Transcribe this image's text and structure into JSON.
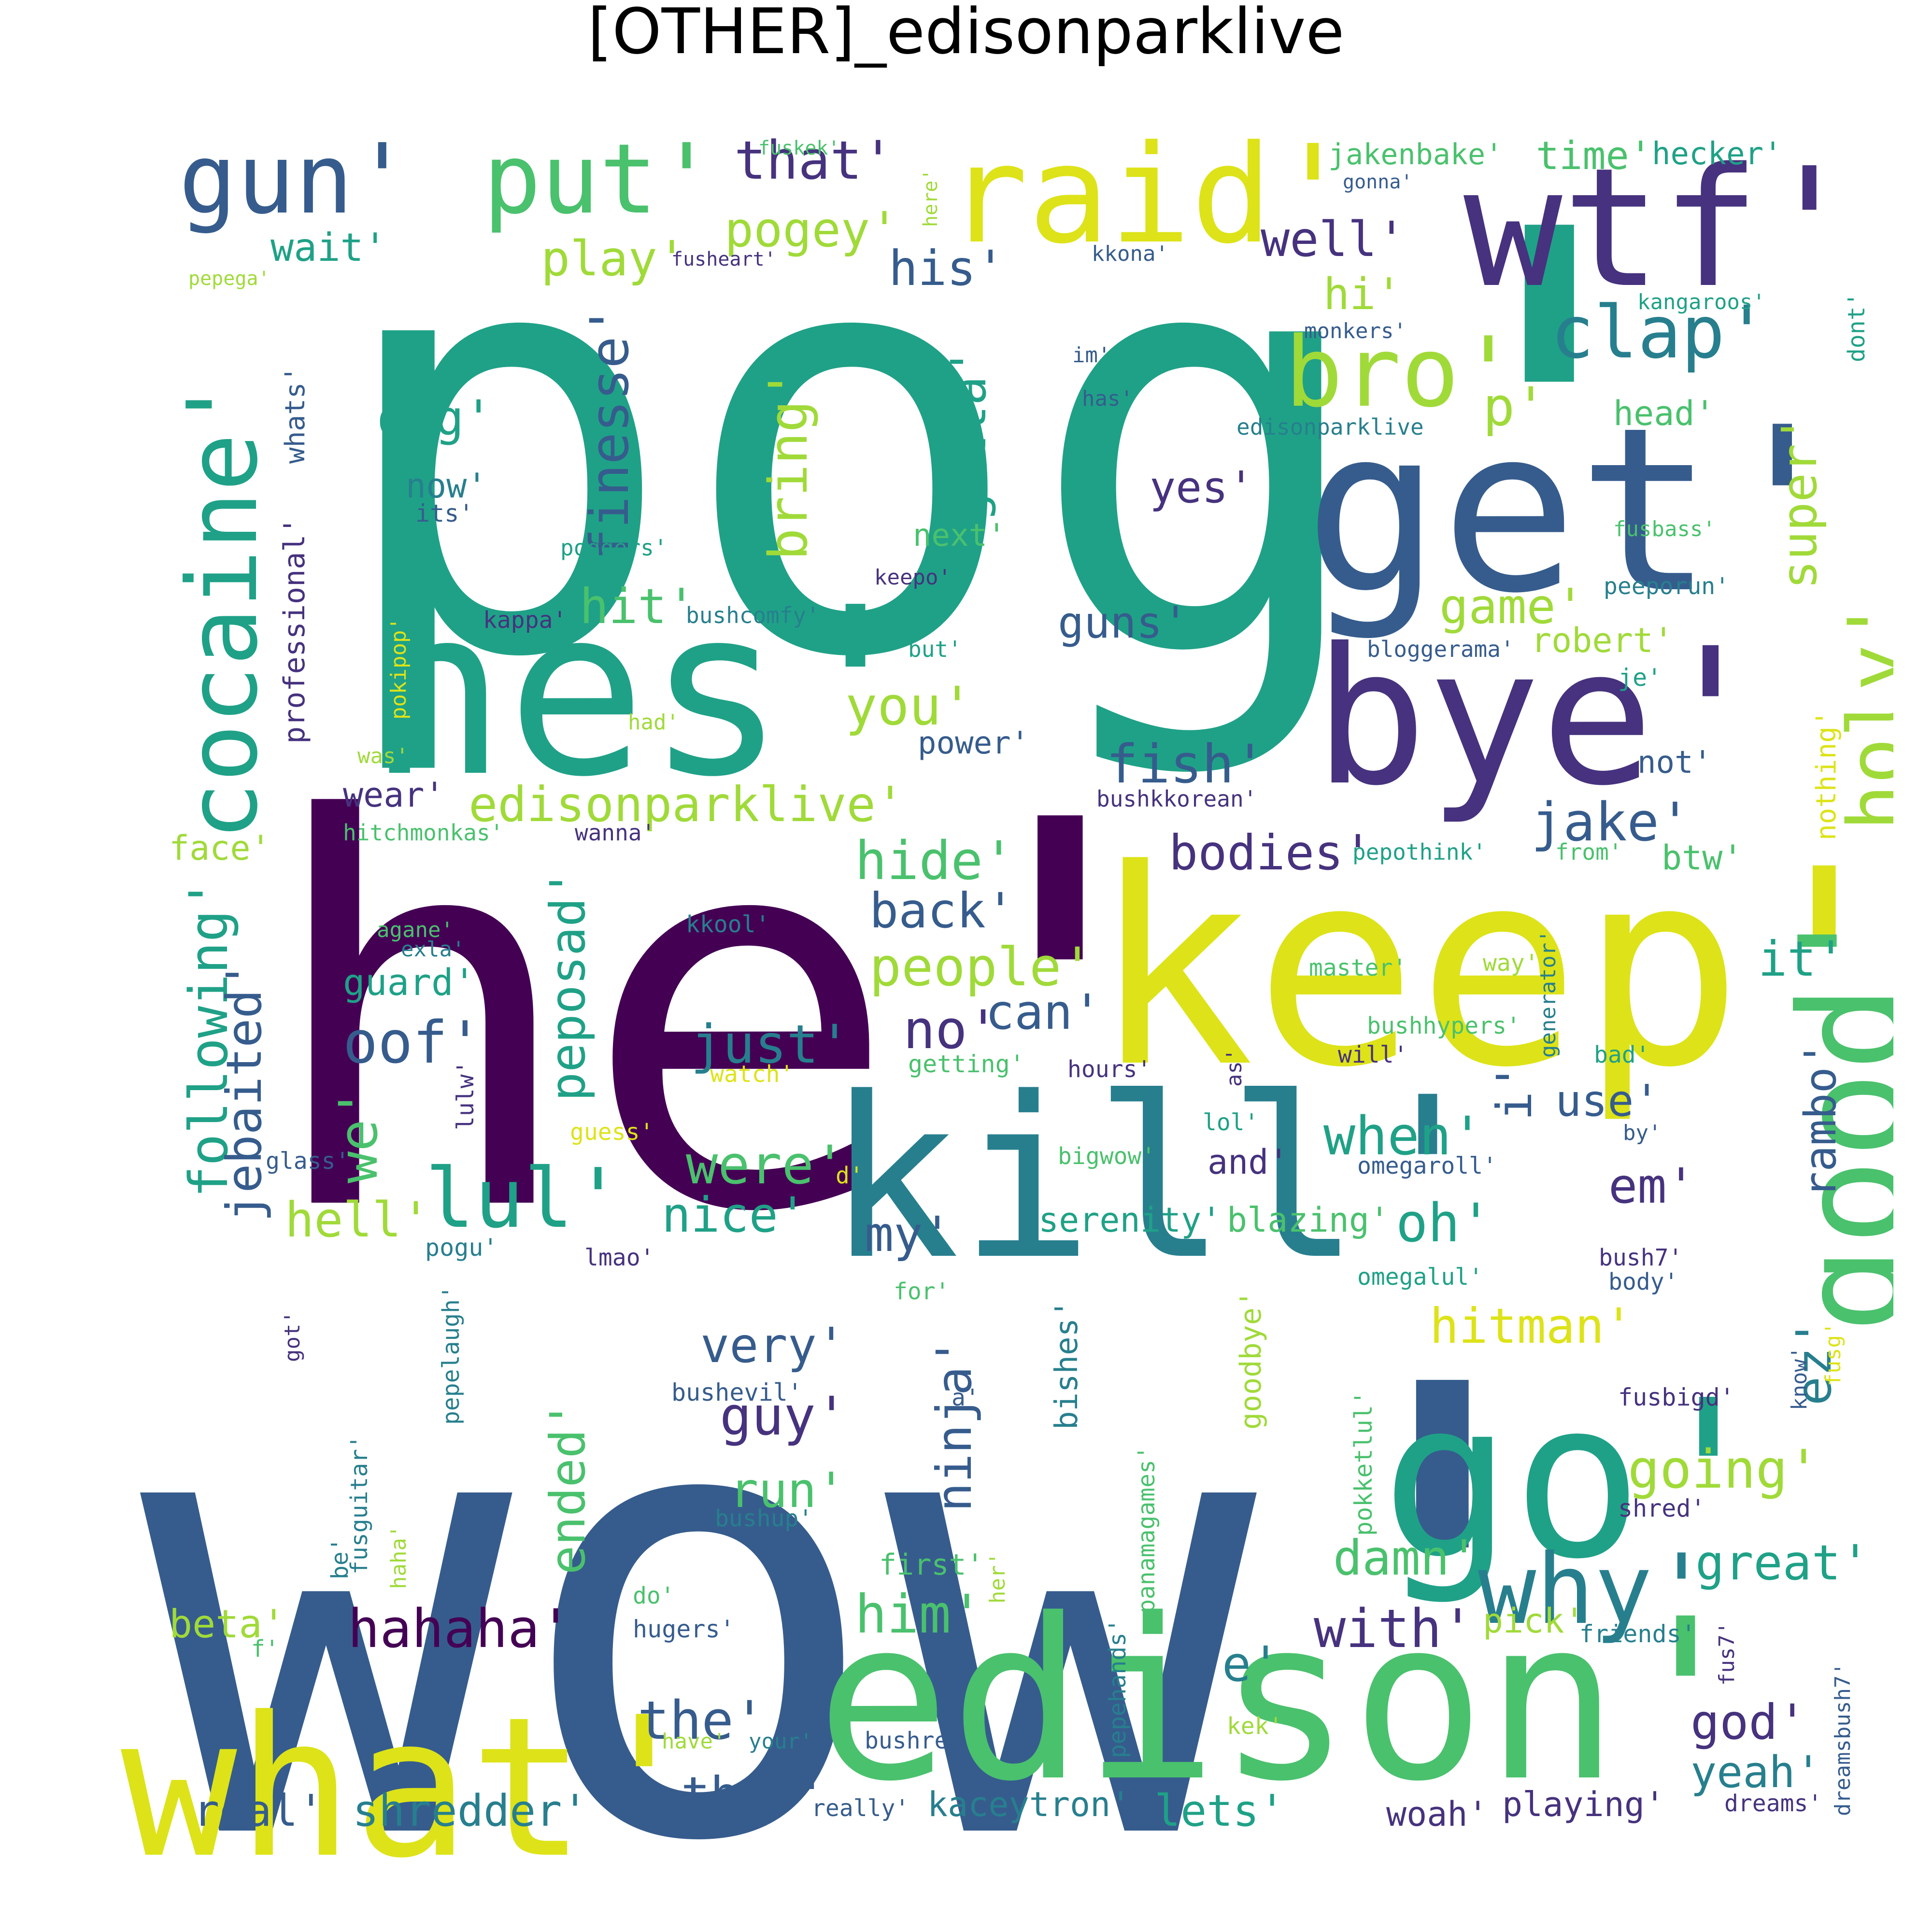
{
  "title": "[OTHER]_edisonparklive",
  "palette": {
    "dark_purple": "#440154",
    "purple": "#46327e",
    "dark_blue": "#365c8d",
    "blue": "#277f8e",
    "teal": "#1fa187",
    "green": "#4ac16d",
    "light_green": "#a0da39",
    "yellow": "#dde318"
  },
  "words": [
    {
      "text": "pog'",
      "color": "teal"
    },
    {
      "text": "wow'",
      "color": "dark_blue"
    },
    {
      "text": "he'",
      "color": "dark_purple"
    },
    {
      "text": "keep'",
      "color": "yellow"
    },
    {
      "text": "kill'",
      "color": "blue"
    },
    {
      "text": "hes'",
      "color": "teal"
    },
    {
      "text": "get'",
      "color": "dark_blue"
    },
    {
      "text": "edison'",
      "color": "green"
    },
    {
      "text": "what'",
      "color": "yellow"
    },
    {
      "text": "go'",
      "color": "teal"
    },
    {
      "text": "bye'",
      "color": "purple"
    },
    {
      "text": "wtf'",
      "color": "purple"
    },
    {
      "text": "raid'",
      "color": "yellow"
    },
    {
      "text": "good'",
      "color": "green"
    },
    {
      "text": "gun'",
      "color": "dark_blue"
    },
    {
      "text": "put'",
      "color": "green"
    },
    {
      "text": "cocaine'",
      "color": "teal"
    },
    {
      "text": "bro'",
      "color": "light_green"
    },
    {
      "text": "holy'",
      "color": "light_green"
    },
    {
      "text": "why'",
      "color": "blue"
    },
    {
      "text": "clap'",
      "color": "blue"
    },
    {
      "text": "lul'",
      "color": "teal"
    },
    {
      "text": "that'",
      "color": "purple"
    },
    {
      "text": "pogey'",
      "color": "light_green"
    },
    {
      "text": "play'",
      "color": "light_green"
    },
    {
      "text": "wait'",
      "color": "teal"
    },
    {
      "text": "his'",
      "color": "dark_blue"
    },
    {
      "text": "well'",
      "color": "purple"
    },
    {
      "text": "hi'",
      "color": "light_green"
    },
    {
      "text": "jakenbake'",
      "color": "green"
    },
    {
      "text": "time'",
      "color": "green"
    },
    {
      "text": "hecker'",
      "color": "teal"
    },
    {
      "text": "fuskek'",
      "color": "green"
    },
    {
      "text": "gonna'",
      "color": "dark_blue"
    },
    {
      "text": "here'",
      "color": "light_green"
    },
    {
      "text": "fusheart'",
      "color": "purple"
    },
    {
      "text": "kkona'",
      "color": "dark_blue"
    },
    {
      "text": "pepega'",
      "color": "light_green"
    },
    {
      "text": "kangaroos'",
      "color": "teal"
    },
    {
      "text": "dont'",
      "color": "teal"
    },
    {
      "text": "monkers'",
      "color": "dark_blue"
    },
    {
      "text": "im'",
      "color": "dark_blue"
    },
    {
      "text": "has'",
      "color": "dark_blue"
    },
    {
      "text": "been'",
      "color": "teal"
    },
    {
      "text": "p'",
      "color": "light_green"
    },
    {
      "text": "omg'",
      "color": "teal"
    },
    {
      "text": "finesse'",
      "color": "dark_blue"
    },
    {
      "text": "bring'",
      "color": "light_green"
    },
    {
      "text": "gotta'",
      "color": "teal"
    },
    {
      "text": "whats'",
      "color": "dark_blue"
    },
    {
      "text": "professional'",
      "color": "purple"
    },
    {
      "text": "head'",
      "color": "green"
    },
    {
      "text": "super'",
      "color": "light_green"
    },
    {
      "text": "edisonparklive",
      "color": "blue"
    },
    {
      "text": "now'",
      "color": "blue"
    },
    {
      "text": "its'",
      "color": "dark_blue"
    },
    {
      "text": "yes'",
      "color": "purple"
    },
    {
      "text": "next'",
      "color": "green"
    },
    {
      "text": "poggers'",
      "color": "teal"
    },
    {
      "text": "fusbass'",
      "color": "green"
    },
    {
      "text": "keepo'",
      "color": "purple"
    },
    {
      "text": "hit'",
      "color": "green"
    },
    {
      "text": "game'",
      "color": "light_green"
    },
    {
      "text": "peeporun'",
      "color": "blue"
    },
    {
      "text": "guns'",
      "color": "dark_blue"
    },
    {
      "text": "kappa'",
      "color": "purple"
    },
    {
      "text": "bushcomfy'",
      "color": "blue"
    },
    {
      "text": "pokipop'",
      "color": "yellow"
    },
    {
      "text": "but'",
      "color": "teal"
    },
    {
      "text": "bloggerama'",
      "color": "dark_blue"
    },
    {
      "text": "robert'",
      "color": "light_green"
    },
    {
      "text": "je'",
      "color": "teal"
    },
    {
      "text": "you'",
      "color": "light_green"
    },
    {
      "text": "had'",
      "color": "light_green"
    },
    {
      "text": "nothing'",
      "color": "yellow"
    },
    {
      "text": "power'",
      "color": "dark_blue"
    },
    {
      "text": "was'",
      "color": "light_green"
    },
    {
      "text": "fish'",
      "color": "dark_blue"
    },
    {
      "text": "not'",
      "color": "dark_blue"
    },
    {
      "text": "edisonparklive'",
      "color": "light_green"
    },
    {
      "text": "wear'",
      "color": "purple"
    },
    {
      "text": "bushkkorean'",
      "color": "purple"
    },
    {
      "text": "jake'",
      "color": "dark_blue"
    },
    {
      "text": "face'",
      "color": "light_green"
    },
    {
      "text": "hitchmonkas'",
      "color": "green"
    },
    {
      "text": "wanna'",
      "color": "purple"
    },
    {
      "text": "bodies'",
      "color": "purple"
    },
    {
      "text": "pepothink'",
      "color": "teal"
    },
    {
      "text": "from'",
      "color": "green"
    },
    {
      "text": "btw'",
      "color": "green"
    },
    {
      "text": "hide'",
      "color": "green"
    },
    {
      "text": "back'",
      "color": "dark_blue"
    },
    {
      "text": "following'",
      "color": "teal"
    },
    {
      "text": "peposad'",
      "color": "teal"
    },
    {
      "text": "agane'",
      "color": "green"
    },
    {
      "text": "exla'",
      "color": "blue"
    },
    {
      "text": "kkool'",
      "color": "blue"
    },
    {
      "text": "people'",
      "color": "light_green"
    },
    {
      "text": "it'",
      "color": "teal"
    },
    {
      "text": "master'",
      "color": "green"
    },
    {
      "text": "way'",
      "color": "light_green"
    },
    {
      "text": "generator'",
      "color": "blue"
    },
    {
      "text": "jebaited'",
      "color": "dark_blue"
    },
    {
      "text": "guard'",
      "color": "teal"
    },
    {
      "text": "can'",
      "color": "dark_blue"
    },
    {
      "text": "rambo'",
      "color": "dark_blue"
    },
    {
      "text": "just'",
      "color": "blue"
    },
    {
      "text": "no'",
      "color": "purple"
    },
    {
      "text": "bushhypers'",
      "color": "green"
    },
    {
      "text": "oof'",
      "color": "dark_blue"
    },
    {
      "text": "bad'",
      "color": "teal"
    },
    {
      "text": "getting'",
      "color": "green"
    },
    {
      "text": "hours'",
      "color": "purple"
    },
    {
      "text": "as'",
      "color": "purple"
    },
    {
      "text": "will'",
      "color": "purple"
    },
    {
      "text": "watch'",
      "color": "yellow"
    },
    {
      "text": "lulw'",
      "color": "purple"
    },
    {
      "text": "i'",
      "color": "dark_blue"
    },
    {
      "text": "use'",
      "color": "dark_blue"
    },
    {
      "text": "we'",
      "color": "green"
    },
    {
      "text": "when'",
      "color": "teal"
    },
    {
      "text": "lol'",
      "color": "teal"
    },
    {
      "text": "guess'",
      "color": "yellow"
    },
    {
      "text": "by'",
      "color": "dark_blue"
    },
    {
      "text": "glass'",
      "color": "dark_blue"
    },
    {
      "text": "d'",
      "color": "yellow"
    },
    {
      "text": "bigwow'",
      "color": "green"
    },
    {
      "text": "and'",
      "color": "purple"
    },
    {
      "text": "omegaroll'",
      "color": "dark_blue"
    },
    {
      "text": "em'",
      "color": "purple"
    },
    {
      "text": "were'",
      "color": "green"
    },
    {
      "text": "hell'",
      "color": "light_green"
    },
    {
      "text": "nice'",
      "color": "teal"
    },
    {
      "text": "serenity'",
      "color": "teal"
    },
    {
      "text": "blazing'",
      "color": "green"
    },
    {
      "text": "oh'",
      "color": "teal"
    },
    {
      "text": "pogu'",
      "color": "blue"
    },
    {
      "text": "lmao'",
      "color": "purple"
    },
    {
      "text": "my'",
      "color": "dark_blue"
    },
    {
      "text": "goodbye'",
      "color": "light_green"
    },
    {
      "text": "omegalul'",
      "color": "teal"
    },
    {
      "text": "bush7'",
      "color": "purple"
    },
    {
      "text": "body'",
      "color": "dark_blue"
    },
    {
      "text": "for'",
      "color": "green"
    },
    {
      "text": "pepelaugh'",
      "color": "blue"
    },
    {
      "text": "got'",
      "color": "purple"
    },
    {
      "text": "hitman'",
      "color": "yellow"
    },
    {
      "text": "very'",
      "color": "dark_blue"
    },
    {
      "text": "bishes'",
      "color": "blue"
    },
    {
      "text": "ez'",
      "color": "blue"
    },
    {
      "text": "know'",
      "color": "dark_blue"
    },
    {
      "text": "fusg'",
      "color": "yellow"
    },
    {
      "text": "bushevil'",
      "color": "dark_blue"
    },
    {
      "text": "a'",
      "color": "dark_blue"
    },
    {
      "text": "guy'",
      "color": "purple"
    },
    {
      "text": "fusbigd'",
      "color": "purple"
    },
    {
      "text": "ninja'",
      "color": "dark_blue"
    },
    {
      "text": "ended'",
      "color": "green"
    },
    {
      "text": "going'",
      "color": "light_green"
    },
    {
      "text": "run'",
      "color": "green"
    },
    {
      "text": "bushup'",
      "color": "blue"
    },
    {
      "text": "panamagames'",
      "color": "green"
    },
    {
      "text": "pokketlul'",
      "color": "green"
    },
    {
      "text": "shred'",
      "color": "purple"
    },
    {
      "text": "fusguitar'",
      "color": "blue"
    },
    {
      "text": "be'",
      "color": "blue"
    },
    {
      "text": "haha'",
      "color": "light_green"
    },
    {
      "text": "first'",
      "color": "green"
    },
    {
      "text": "her'",
      "color": "light_green"
    },
    {
      "text": "damn'",
      "color": "green"
    },
    {
      "text": "great'",
      "color": "teal"
    },
    {
      "text": "do'",
      "color": "green"
    },
    {
      "text": "him'",
      "color": "green"
    },
    {
      "text": "with'",
      "color": "purple"
    },
    {
      "text": "pick'",
      "color": "light_green"
    },
    {
      "text": "beta'",
      "color": "light_green"
    },
    {
      "text": "hugers'",
      "color": "dark_blue"
    },
    {
      "text": "friends'",
      "color": "blue"
    },
    {
      "text": "hahaha'",
      "color": "dark_purple"
    },
    {
      "text": "fus7'",
      "color": "purple"
    },
    {
      "text": "f'",
      "color": "green"
    },
    {
      "text": "pepehands'",
      "color": "blue"
    },
    {
      "text": "e'",
      "color": "blue"
    },
    {
      "text": "dreamsbush7'",
      "color": "dark_blue"
    },
    {
      "text": "the'",
      "color": "dark_blue"
    },
    {
      "text": "god'",
      "color": "purple"
    },
    {
      "text": "kek'",
      "color": "light_green"
    },
    {
      "text": "have'",
      "color": "light_green"
    },
    {
      "text": "your'",
      "color": "blue"
    },
    {
      "text": "bushre'",
      "color": "dark_blue"
    },
    {
      "text": "yeah'",
      "color": "blue"
    },
    {
      "text": "this'",
      "color": "dark_blue"
    },
    {
      "text": "real'",
      "color": "dark_blue"
    },
    {
      "text": "shredder'",
      "color": "blue"
    },
    {
      "text": "really'",
      "color": "dark_blue"
    },
    {
      "text": "kaceytron'",
      "color": "blue"
    },
    {
      "text": "lets'",
      "color": "teal"
    },
    {
      "text": "woah'",
      "color": "purple"
    },
    {
      "text": "playing'",
      "color": "purple"
    },
    {
      "text": "dreams'",
      "color": "purple"
    }
  ]
}
